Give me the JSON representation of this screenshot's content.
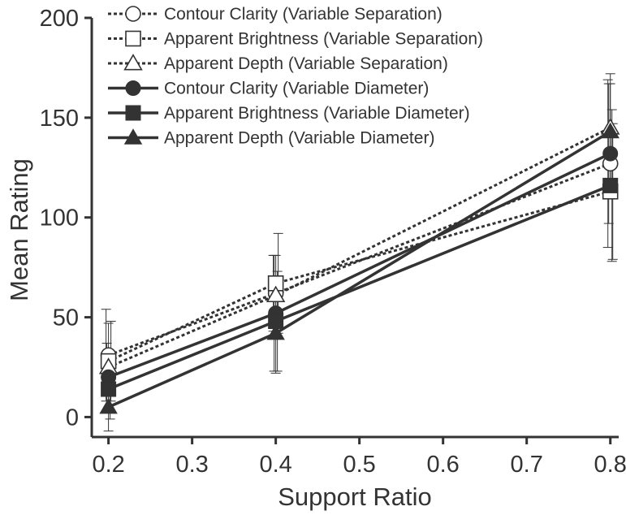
{
  "chart_data": {
    "type": "line",
    "xlabel": "Support Ratio",
    "ylabel": "Mean Rating",
    "xlim": [
      0.18,
      0.81
    ],
    "ylim": [
      -10,
      200
    ],
    "xticks": [
      "0.2",
      "0.3",
      "0.4",
      "0.5",
      "0.6",
      "0.7",
      "0.8"
    ],
    "yticks": [
      "0",
      "50",
      "100",
      "150",
      "200"
    ],
    "grid": false,
    "legend_position": "top-left",
    "x": [
      0.2,
      0.4,
      0.8
    ],
    "series": [
      {
        "name": "Contour Clarity (Variable Separation)",
        "values": [
          31,
          62,
          127
        ],
        "errors": [
          23,
          19,
          42
        ],
        "marker": "circle",
        "filled": false,
        "dashed": true
      },
      {
        "name": "Apparent Brightness (Variable Separation)",
        "values": [
          28,
          67,
          113
        ],
        "errors": [
          20,
          25,
          34
        ],
        "marker": "square",
        "filled": false,
        "dashed": true
      },
      {
        "name": "Apparent Depth (Variable Separation)",
        "values": [
          25,
          61,
          145
        ],
        "errors": [
          22,
          20,
          27
        ],
        "marker": "triangle",
        "filled": false,
        "dashed": true
      },
      {
        "name": "Contour Clarity (Variable Diameter)",
        "values": [
          20,
          52,
          132
        ],
        "errors": [
          17,
          29,
          35
        ],
        "marker": "circle",
        "filled": true,
        "dashed": false
      },
      {
        "name": "Apparent Brightness (Variable Diameter)",
        "values": [
          14,
          48,
          116
        ],
        "errors": [
          15,
          25,
          38
        ],
        "marker": "square",
        "filled": true,
        "dashed": false
      },
      {
        "name": "Apparent Depth (Variable Diameter)",
        "values": [
          5,
          42,
          143
        ],
        "errors": [
          12,
          20,
          24
        ],
        "marker": "triangle",
        "filled": true,
        "dashed": false
      }
    ],
    "colors": {
      "line": "#333333",
      "marker_fill": "#333333",
      "hollow_fill": "#ffffff"
    }
  }
}
